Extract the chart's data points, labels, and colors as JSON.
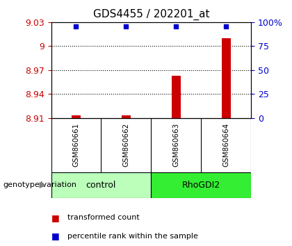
{
  "title": "GDS4455 / 202201_at",
  "samples": [
    "GSM860661",
    "GSM860662",
    "GSM860663",
    "GSM860664"
  ],
  "bar_values": [
    8.913,
    8.913,
    8.963,
    9.01
  ],
  "blue_square_values": [
    9.025,
    9.025,
    9.025,
    9.025
  ],
  "bar_baseline": 8.91,
  "bar_color": "#cc0000",
  "blue_color": "#0000cc",
  "ylim_left": [
    8.91,
    9.03
  ],
  "yticks_left": [
    8.91,
    8.94,
    8.97,
    9.0,
    9.03
  ],
  "ytick_labels_left": [
    "8.91",
    "8.94",
    "8.97",
    "9",
    "9.03"
  ],
  "yticks_right": [
    0,
    25,
    50,
    75,
    100
  ],
  "ytick_labels_right": [
    "0",
    "25",
    "50",
    "75",
    "100%"
  ],
  "groups": [
    {
      "label": "control",
      "samples": [
        0,
        1
      ],
      "color": "#bbffbb"
    },
    {
      "label": "RhoGDI2",
      "samples": [
        2,
        3
      ],
      "color": "#33ee33"
    }
  ],
  "group_label_prefix": "genotype/variation",
  "legend_items": [
    {
      "label": "transformed count",
      "color": "#cc0000"
    },
    {
      "label": "percentile rank within the sample",
      "color": "#0000cc"
    }
  ],
  "bar_width": 0.18,
  "background_color": "#ffffff",
  "plot_bg_color": "#ffffff",
  "tick_label_color_left": "#cc0000",
  "tick_label_color_right": "#0000cc",
  "sample_box_color": "#cccccc"
}
